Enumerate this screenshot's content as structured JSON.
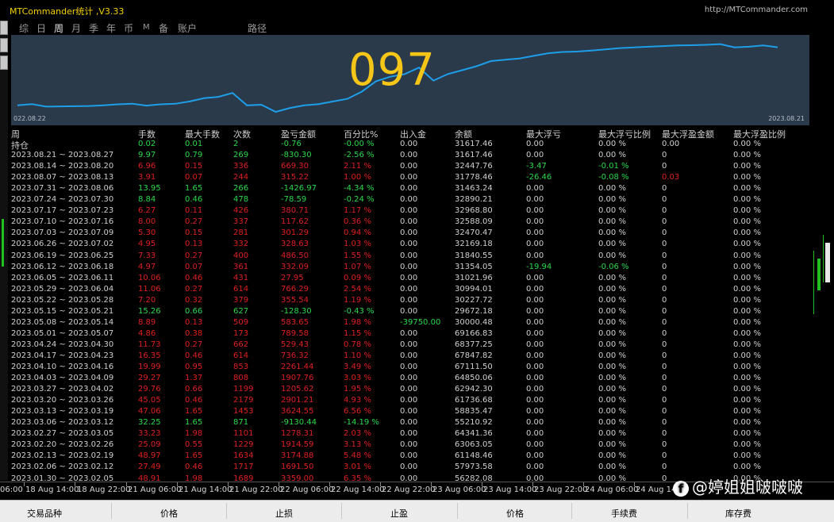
{
  "app": {
    "title": "MTCommander统计 ,V3.33",
    "link": "http://MTCommander.com"
  },
  "menu": [
    "综",
    "日",
    "周",
    "月",
    "季",
    "年",
    "币",
    "M",
    "备",
    "账户",
    "路径"
  ],
  "chart": {
    "overlay_number": "097",
    "x_start_label": "022.08.22",
    "x_end_label": "2023.08.21",
    "line_color": "#1e9ee8",
    "background": "#2b3a4a",
    "series": [
      5,
      6,
      4,
      4.2,
      4.3,
      4.5,
      5,
      5.8,
      6.3,
      4.8,
      5.8,
      6.2,
      8,
      10.5,
      11.5,
      14.5,
      5,
      5.5,
      0,
      3,
      5,
      6,
      8,
      10,
      15.5,
      23.5,
      27,
      29,
      34,
      24,
      29,
      32,
      35,
      39,
      40,
      41,
      43,
      45,
      46,
      46.3,
      47,
      48,
      49,
      49.5,
      50,
      50.5,
      51,
      51.2,
      51.5,
      52,
      49.5,
      50,
      51,
      49.6
    ],
    "y_range": [
      0,
      53
    ]
  },
  "table": {
    "columns": [
      "周",
      "手数",
      "最大手数",
      "次数",
      "盈亏金额",
      "百分比%",
      "出入金",
      "余额",
      "最大浮亏",
      "最大浮亏比例",
      "最大浮盈金额",
      "最大浮盈比例"
    ],
    "holding_label": "持仓",
    "rows": [
      {
        "period": "",
        "c": "g",
        "lots": "0.02",
        "max_lots": "0.01",
        "count": "2",
        "pnl": "-0.76",
        "pct": "-0.00 %",
        "deposit": "0.00",
        "balance": "31617.46",
        "max_dd": "0.00",
        "max_dd_pct": "0.00 %",
        "max_fp": "0.00",
        "max_fp_pct": "0.00 %"
      },
      {
        "period": "2023.08.21 ~ 2023.08.27",
        "c": "g",
        "lots": "9.97",
        "max_lots": "0.79",
        "count": "269",
        "pnl": "-830.30",
        "pct": "-2.56 %",
        "deposit": "0.00",
        "balance": "31617.46",
        "max_dd": "0.00",
        "max_dd_pct": "0.00 %",
        "max_fp": "0",
        "max_fp_pct": "0.00 %"
      },
      {
        "period": "2023.08.14 ~ 2023.08.20",
        "c": "r",
        "lots": "6.96",
        "max_lots": "0.15",
        "count": "336",
        "pnl": "669.30",
        "pct": "2.11 %",
        "deposit": "0.00",
        "balance": "32447.76",
        "max_dd": "-3.47",
        "max_dd_pct": "-0.01 %",
        "max_fp": "0",
        "max_fp_pct": "0.00 %",
        "dd_c": "g"
      },
      {
        "period": "2023.08.07 ~ 2023.08.13",
        "c": "r",
        "lots": "3.91",
        "max_lots": "0.07",
        "count": "244",
        "pnl": "315.22",
        "pct": "1.00 %",
        "deposit": "0.00",
        "balance": "31778.46",
        "max_dd": "-26.46",
        "max_dd_pct": "-0.08 %",
        "max_fp": "0.03",
        "max_fp_pct": "0.00 %",
        "dd_c": "g",
        "fp_c": "r"
      },
      {
        "period": "2023.07.31 ~ 2023.08.06",
        "c": "g",
        "lots": "13.95",
        "max_lots": "1.65",
        "count": "266",
        "pnl": "-1426.97",
        "pct": "-4.34 %",
        "deposit": "0.00",
        "balance": "31463.24",
        "max_dd": "0.00",
        "max_dd_pct": "0.00 %",
        "max_fp": "0",
        "max_fp_pct": "0.00 %"
      },
      {
        "period": "2023.07.24 ~ 2023.07.30",
        "c": "g",
        "lots": "8.84",
        "max_lots": "0.46",
        "count": "478",
        "pnl": "-78.59",
        "pct": "-0.24 %",
        "deposit": "0.00",
        "balance": "32890.21",
        "max_dd": "0.00",
        "max_dd_pct": "0.00 %",
        "max_fp": "0",
        "max_fp_pct": "0.00 %"
      },
      {
        "period": "2023.07.17 ~ 2023.07.23",
        "c": "r",
        "lots": "6.27",
        "max_lots": "0.11",
        "count": "426",
        "pnl": "380.71",
        "pct": "1.17 %",
        "deposit": "0.00",
        "balance": "32968.80",
        "max_dd": "0.00",
        "max_dd_pct": "0.00 %",
        "max_fp": "0",
        "max_fp_pct": "0.00 %"
      },
      {
        "period": "2023.07.10 ~ 2023.07.16",
        "c": "r",
        "lots": "8.00",
        "max_lots": "0.27",
        "count": "337",
        "pnl": "117.62",
        "pct": "0.36 %",
        "deposit": "0.00",
        "balance": "32588.09",
        "max_dd": "0.00",
        "max_dd_pct": "0.00 %",
        "max_fp": "0",
        "max_fp_pct": "0.00 %"
      },
      {
        "period": "2023.07.03 ~ 2023.07.09",
        "c": "r",
        "lots": "5.30",
        "max_lots": "0.15",
        "count": "281",
        "pnl": "301.29",
        "pct": "0.94 %",
        "deposit": "0.00",
        "balance": "32470.47",
        "max_dd": "0.00",
        "max_dd_pct": "0.00 %",
        "max_fp": "0",
        "max_fp_pct": "0.00 %"
      },
      {
        "period": "2023.06.26 ~ 2023.07.02",
        "c": "r",
        "lots": "4.95",
        "max_lots": "0.13",
        "count": "332",
        "pnl": "328.63",
        "pct": "1.03 %",
        "deposit": "0.00",
        "balance": "32169.18",
        "max_dd": "0.00",
        "max_dd_pct": "0.00 %",
        "max_fp": "0",
        "max_fp_pct": "0.00 %"
      },
      {
        "period": "2023.06.19 ~ 2023.06.25",
        "c": "r",
        "lots": "7.33",
        "max_lots": "0.27",
        "count": "400",
        "pnl": "486.50",
        "pct": "1.55 %",
        "deposit": "0.00",
        "balance": "31840.55",
        "max_dd": "0.00",
        "max_dd_pct": "0.00 %",
        "max_fp": "0",
        "max_fp_pct": "0.00 %"
      },
      {
        "period": "2023.06.12 ~ 2023.06.18",
        "c": "r",
        "lots": "4.97",
        "max_lots": "0.07",
        "count": "361",
        "pnl": "332.09",
        "pct": "1.07 %",
        "deposit": "0.00",
        "balance": "31354.05",
        "max_dd": "-19.94",
        "max_dd_pct": "-0.06 %",
        "max_fp": "0",
        "max_fp_pct": "0.00 %",
        "dd_c": "g"
      },
      {
        "period": "2023.06.05 ~ 2023.06.11",
        "c": "r",
        "lots": "10.06",
        "max_lots": "0.46",
        "count": "431",
        "pnl": "27.95",
        "pct": "0.09 %",
        "deposit": "0.00",
        "balance": "31021.96",
        "max_dd": "0.00",
        "max_dd_pct": "0.00 %",
        "max_fp": "0",
        "max_fp_pct": "0.00 %"
      },
      {
        "period": "2023.05.29 ~ 2023.06.04",
        "c": "r",
        "lots": "11.06",
        "max_lots": "0.27",
        "count": "614",
        "pnl": "766.29",
        "pct": "2.54 %",
        "deposit": "0.00",
        "balance": "30994.01",
        "max_dd": "0.00",
        "max_dd_pct": "0.00 %",
        "max_fp": "0",
        "max_fp_pct": "0.00 %"
      },
      {
        "period": "2023.05.22 ~ 2023.05.28",
        "c": "r",
        "lots": "7.20",
        "max_lots": "0.32",
        "count": "379",
        "pnl": "355.54",
        "pct": "1.19 %",
        "deposit": "0.00",
        "balance": "30227.72",
        "max_dd": "0.00",
        "max_dd_pct": "0.00 %",
        "max_fp": "0",
        "max_fp_pct": "0.00 %"
      },
      {
        "period": "2023.05.15 ~ 2023.05.21",
        "c": "g",
        "lots": "15.26",
        "max_lots": "0.66",
        "count": "627",
        "pnl": "-128.30",
        "pct": "-0.43 %",
        "deposit": "0.00",
        "balance": "29672.18",
        "max_dd": "0.00",
        "max_dd_pct": "0.00 %",
        "max_fp": "0",
        "max_fp_pct": "0.00 %"
      },
      {
        "period": "2023.05.08 ~ 2023.05.14",
        "c": "r",
        "lots": "8.89",
        "max_lots": "0.13",
        "count": "509",
        "pnl": "583.65",
        "pct": "1.98 %",
        "deposit": "-39750.00",
        "balance": "30000.48",
        "max_dd": "0.00",
        "max_dd_pct": "0.00 %",
        "max_fp": "0",
        "max_fp_pct": "0.00 %",
        "dep_c": "g"
      },
      {
        "period": "2023.05.01 ~ 2023.05.07",
        "c": "r",
        "lots": "4.86",
        "max_lots": "0.38",
        "count": "173",
        "pnl": "789.58",
        "pct": "1.15 %",
        "deposit": "0.00",
        "balance": "69166.83",
        "max_dd": "0.00",
        "max_dd_pct": "0.00 %",
        "max_fp": "0",
        "max_fp_pct": "0.00 %"
      },
      {
        "period": "2023.04.24 ~ 2023.04.30",
        "c": "r",
        "lots": "11.73",
        "max_lots": "0.27",
        "count": "662",
        "pnl": "529.43",
        "pct": "0.78 %",
        "deposit": "0.00",
        "balance": "68377.25",
        "max_dd": "0.00",
        "max_dd_pct": "0.00 %",
        "max_fp": "0",
        "max_fp_pct": "0.00 %"
      },
      {
        "period": "2023.04.17 ~ 2023.04.23",
        "c": "r",
        "lots": "16.35",
        "max_lots": "0.46",
        "count": "614",
        "pnl": "736.32",
        "pct": "1.10 %",
        "deposit": "0.00",
        "balance": "67847.82",
        "max_dd": "0.00",
        "max_dd_pct": "0.00 %",
        "max_fp": "0",
        "max_fp_pct": "0.00 %"
      },
      {
        "period": "2023.04.10 ~ 2023.04.16",
        "c": "r",
        "lots": "19.99",
        "max_lots": "0.95",
        "count": "853",
        "pnl": "2261.44",
        "pct": "3.49 %",
        "deposit": "0.00",
        "balance": "67111.50",
        "max_dd": "0.00",
        "max_dd_pct": "0.00 %",
        "max_fp": "0",
        "max_fp_pct": "0.00 %"
      },
      {
        "period": "2023.04.03 ~ 2023.04.09",
        "c": "r",
        "lots": "29.27",
        "max_lots": "1.37",
        "count": "808",
        "pnl": "1907.76",
        "pct": "3.03 %",
        "deposit": "0.00",
        "balance": "64850.06",
        "max_dd": "0.00",
        "max_dd_pct": "0.00 %",
        "max_fp": "0",
        "max_fp_pct": "0.00 %"
      },
      {
        "period": "2023.03.27 ~ 2023.04.02",
        "c": "r",
        "lots": "29.76",
        "max_lots": "0.66",
        "count": "1199",
        "pnl": "1205.62",
        "pct": "1.95 %",
        "deposit": "0.00",
        "balance": "62942.30",
        "max_dd": "0.00",
        "max_dd_pct": "0.00 %",
        "max_fp": "0",
        "max_fp_pct": "0.00 %"
      },
      {
        "period": "2023.03.20 ~ 2023.03.26",
        "c": "r",
        "lots": "45.05",
        "max_lots": "0.46",
        "count": "2179",
        "pnl": "2901.21",
        "pct": "4.93 %",
        "deposit": "0.00",
        "balance": "61736.68",
        "max_dd": "0.00",
        "max_dd_pct": "0.00 %",
        "max_fp": "0",
        "max_fp_pct": "0.00 %"
      },
      {
        "period": "2023.03.13 ~ 2023.03.19",
        "c": "r",
        "lots": "47.06",
        "max_lots": "1.65",
        "count": "1453",
        "pnl": "3624.55",
        "pct": "6.56 %",
        "deposit": "0.00",
        "balance": "58835.47",
        "max_dd": "0.00",
        "max_dd_pct": "0.00 %",
        "max_fp": "0",
        "max_fp_pct": "0.00 %"
      },
      {
        "period": "2023.03.06 ~ 2023.03.12",
        "c": "g",
        "lots": "32.25",
        "max_lots": "1.65",
        "count": "871",
        "pnl": "-9130.44",
        "pct": "-14.19 %",
        "deposit": "0.00",
        "balance": "55210.92",
        "max_dd": "0.00",
        "max_dd_pct": "0.00 %",
        "max_fp": "0",
        "max_fp_pct": "0.00 %"
      },
      {
        "period": "2023.02.27 ~ 2023.03.05",
        "c": "r",
        "lots": "33.23",
        "max_lots": "1.98",
        "count": "1101",
        "pnl": "1278.31",
        "pct": "2.03 %",
        "deposit": "0.00",
        "balance": "64341.36",
        "max_dd": "0.00",
        "max_dd_pct": "0.00 %",
        "max_fp": "0",
        "max_fp_pct": "0.00 %"
      },
      {
        "period": "2023.02.20 ~ 2023.02.26",
        "c": "r",
        "lots": "25.09",
        "max_lots": "0.55",
        "count": "1229",
        "pnl": "1914.59",
        "pct": "3.13 %",
        "deposit": "0.00",
        "balance": "63063.05",
        "max_dd": "0.00",
        "max_dd_pct": "0.00 %",
        "max_fp": "0",
        "max_fp_pct": "0.00 %"
      },
      {
        "period": "2023.02.13 ~ 2023.02.19",
        "c": "r",
        "lots": "48.97",
        "max_lots": "1.65",
        "count": "1634",
        "pnl": "3174.88",
        "pct": "5.48 %",
        "deposit": "0.00",
        "balance": "61148.46",
        "max_dd": "0.00",
        "max_dd_pct": "0.00 %",
        "max_fp": "0",
        "max_fp_pct": "0.00 %"
      },
      {
        "period": "2023.02.06 ~ 2023.02.12",
        "c": "r",
        "lots": "27.49",
        "max_lots": "0.46",
        "count": "1717",
        "pnl": "1691.50",
        "pct": "3.01 %",
        "deposit": "0.00",
        "balance": "57973.58",
        "max_dd": "0.00",
        "max_dd_pct": "0.00 %",
        "max_fp": "0",
        "max_fp_pct": "0.00 %"
      },
      {
        "period": "2023.01.30 ~ 2023.02.05",
        "c": "r",
        "lots": "48.91",
        "max_lots": "1.98",
        "count": "1689",
        "pnl": "3359.00",
        "pct": "6.35 %",
        "deposit": "0.00",
        "balance": "56282.08",
        "max_dd": "0.00",
        "max_dd_pct": "0.00 %",
        "max_fp": "0",
        "max_fp_pct": "0.00 %"
      }
    ]
  },
  "timeline": [
    "06:00",
    "18 Aug 14:00",
    "18 Aug 22:00",
    "21 Aug 06:00",
    "21 Aug 14:00",
    "21 Aug 22:00",
    "22 Aug 06:00",
    "22 Aug 14:00",
    "22 Aug 22:00",
    "23 Aug 06:00",
    "23 Aug 14:00",
    "23 Aug 22:00",
    "24 Aug 06:00",
    "24 Aug 14:00"
  ],
  "watermark": "@婷姐姐啵啵啵",
  "bottom_header": [
    "交易品种",
    "价格",
    "止损",
    "止盈",
    "价格",
    "手续费",
    "库存费"
  ]
}
